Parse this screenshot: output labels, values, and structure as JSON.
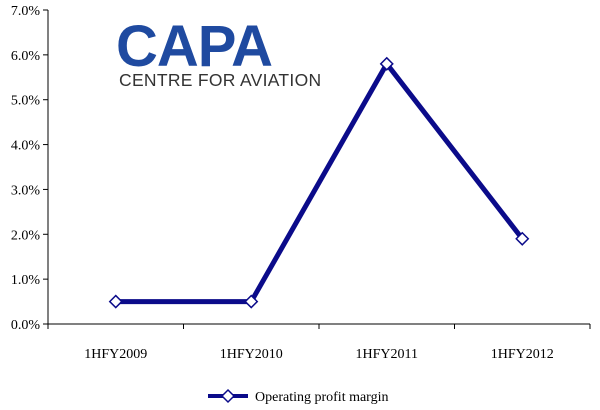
{
  "logo": {
    "main": "CAPA",
    "sub": "CENTRE FOR AVIATION",
    "main_color": "#1f4aa0",
    "sub_color": "#333333"
  },
  "chart_data": {
    "type": "line",
    "categories": [
      "1HFY2009",
      "1HFY2010",
      "1HFY2011",
      "1HFY2012"
    ],
    "series": [
      {
        "name": "Operating profit margin",
        "values": [
          0.5,
          0.5,
          5.8,
          1.9
        ],
        "color": "#0b0b8a"
      }
    ],
    "y_ticks": [
      "0.0%",
      "1.0%",
      "2.0%",
      "3.0%",
      "4.0%",
      "5.0%",
      "6.0%",
      "7.0%"
    ],
    "ylim": [
      0,
      7
    ],
    "unit": "%",
    "grid": false,
    "legend_position": "bottom"
  }
}
